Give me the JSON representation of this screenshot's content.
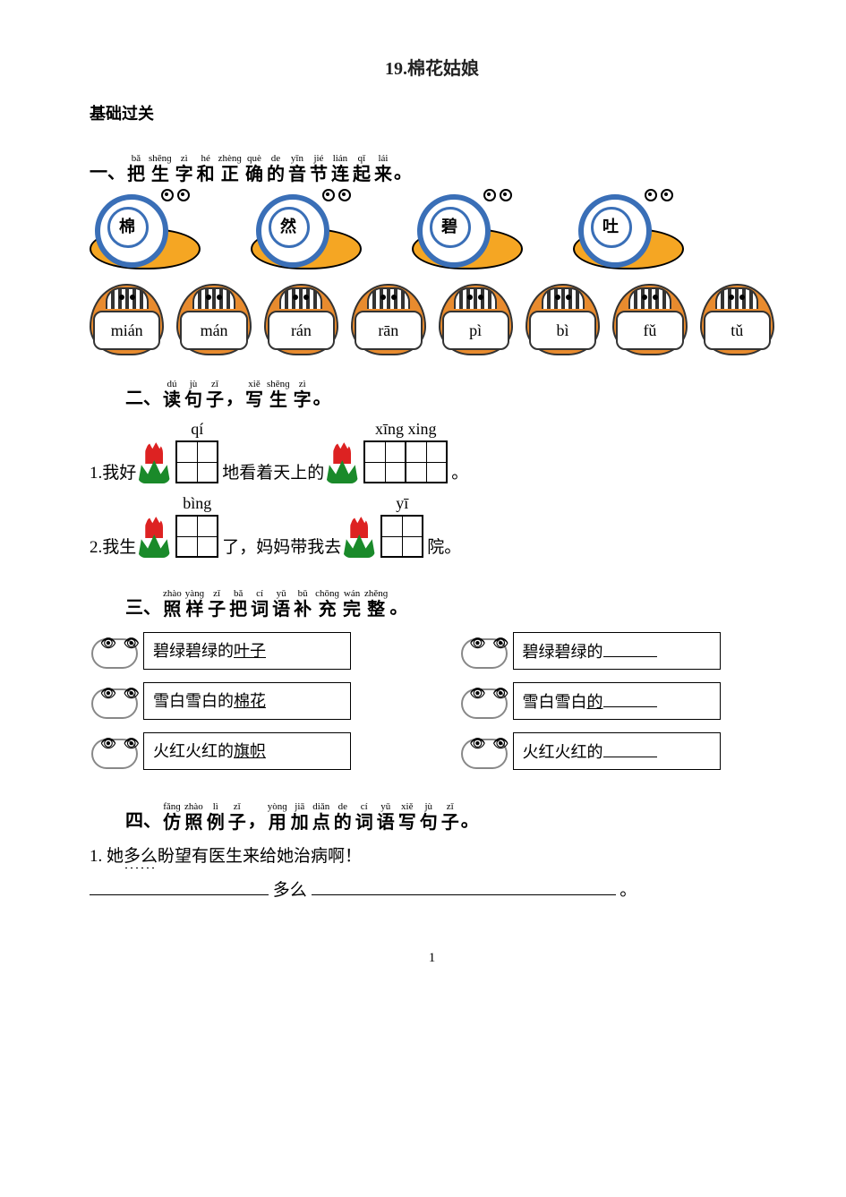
{
  "colors": {
    "title": "#222222",
    "text": "#000000",
    "snail_body": "#f5a623",
    "snail_shell": "#3a6fb7",
    "egg_fill": "#e88b2e",
    "tulip_flower": "#dd2222",
    "tulip_leaf": "#1a8a2a",
    "background": "#ffffff"
  },
  "fonts": {
    "body_family": "SimSun / STSong serif",
    "pinyin_family": "Times New Roman",
    "title_size_pt": 20,
    "body_size_pt": 19,
    "pinyin_small_size_pt": 11
  },
  "title": "19.棉花姑娘",
  "section_header": "基础过关",
  "s1": {
    "prefix": "一、",
    "ruby": [
      {
        "p": "bǎ",
        "h": "把"
      },
      {
        "p": "shēnɡ",
        "h": "生"
      },
      {
        "p": "zì",
        "h": "字"
      },
      {
        "p": "hé",
        "h": "和"
      },
      {
        "p": "zhènɡ",
        "h": "正"
      },
      {
        "p": "què",
        "h": "确"
      },
      {
        "p": "de",
        "h": "的"
      },
      {
        "p": "yīn",
        "h": "音"
      },
      {
        "p": "jié",
        "h": "节"
      },
      {
        "p": "lián",
        "h": "连"
      },
      {
        "p": "qǐ",
        "h": "起"
      },
      {
        "p": "lái",
        "h": "来"
      }
    ],
    "suffix": "。",
    "snails": [
      "棉",
      "然",
      "碧",
      "吐"
    ],
    "eggs": [
      "mián",
      "mán",
      "rán",
      "rān",
      "pì",
      "bì",
      "fǔ",
      "tǔ"
    ]
  },
  "s2": {
    "prefix": "二、",
    "ruby": [
      {
        "p": "dú",
        "h": "读"
      },
      {
        "p": "jù",
        "h": "句"
      },
      {
        "p": "zǐ",
        "h": "子"
      }
    ],
    "mid": "，",
    "ruby2": [
      {
        "p": "xiě",
        "h": "写"
      },
      {
        "p": "shēnɡ",
        "h": "生"
      },
      {
        "p": "zì",
        "h": "字"
      }
    ],
    "suffix": "。",
    "line1": {
      "n": "1.",
      "a": "我好",
      "pin1": "qí",
      "cells1": 1,
      "b": "地看着天上的",
      "pin2": "xīng  xing",
      "cells2": 2,
      "c": "。"
    },
    "line2": {
      "n": "2.",
      "a": "我生",
      "pin1": "bìng",
      "cells1": 1,
      "b": "了，妈妈带我去",
      "pin2": "yī",
      "cells2": 1,
      "c": "院。"
    }
  },
  "s3": {
    "prefix": "三、",
    "ruby": [
      {
        "p": "zhào",
        "h": "照"
      },
      {
        "p": "yànɡ",
        "h": "样"
      },
      {
        "p": "zǐ",
        "h": "子"
      },
      {
        "p": "bǎ",
        "h": "把"
      },
      {
        "p": "cí",
        "h": "词"
      },
      {
        "p": "yǔ",
        "h": "语"
      },
      {
        "p": "bǔ",
        "h": "补"
      },
      {
        "p": "chōnɡ",
        "h": "充"
      },
      {
        "p": "wán",
        "h": "完"
      },
      {
        "p": "zhěnɡ",
        "h": "整"
      }
    ],
    "suffix": "。",
    "left": [
      {
        "pre": "碧绿碧绿的",
        "u": "叶子"
      },
      {
        "pre": "雪白雪白的",
        "u": "棉花"
      },
      {
        "pre": "火红火红的",
        "u": "旗帜"
      }
    ],
    "right": [
      {
        "pre": "碧绿碧绿的",
        "blank": true
      },
      {
        "pre": "雪白雪白",
        "u": "的",
        "blank": true
      },
      {
        "pre": "火红火红的",
        "blank": true
      }
    ]
  },
  "s4": {
    "prefix": "四、",
    "ruby": [
      {
        "p": "fǎnɡ",
        "h": "仿"
      },
      {
        "p": "zhào",
        "h": "照"
      },
      {
        "p": "lì",
        "h": "例"
      },
      {
        "p": "zǐ",
        "h": "子"
      }
    ],
    "mid": "，",
    "ruby2": [
      {
        "p": "yònɡ",
        "h": "用"
      },
      {
        "p": "jiā",
        "h": "加"
      },
      {
        "p": "diǎn",
        "h": "点"
      },
      {
        "p": "de",
        "h": "的"
      },
      {
        "p": "cí",
        "h": "词"
      },
      {
        "p": "yǔ",
        "h": "语"
      },
      {
        "p": "xiě",
        "h": "写"
      },
      {
        "p": "jù",
        "h": "句"
      },
      {
        "p": "zǐ",
        "h": "子"
      }
    ],
    "suffix": "。",
    "example_num": "1.",
    "sent_a": "她",
    "dotted": "多么",
    "sent_b": "盼望有医生来给她治病啊！",
    "answer_mid": "多么",
    "tail": "。"
  },
  "page_number": "1"
}
